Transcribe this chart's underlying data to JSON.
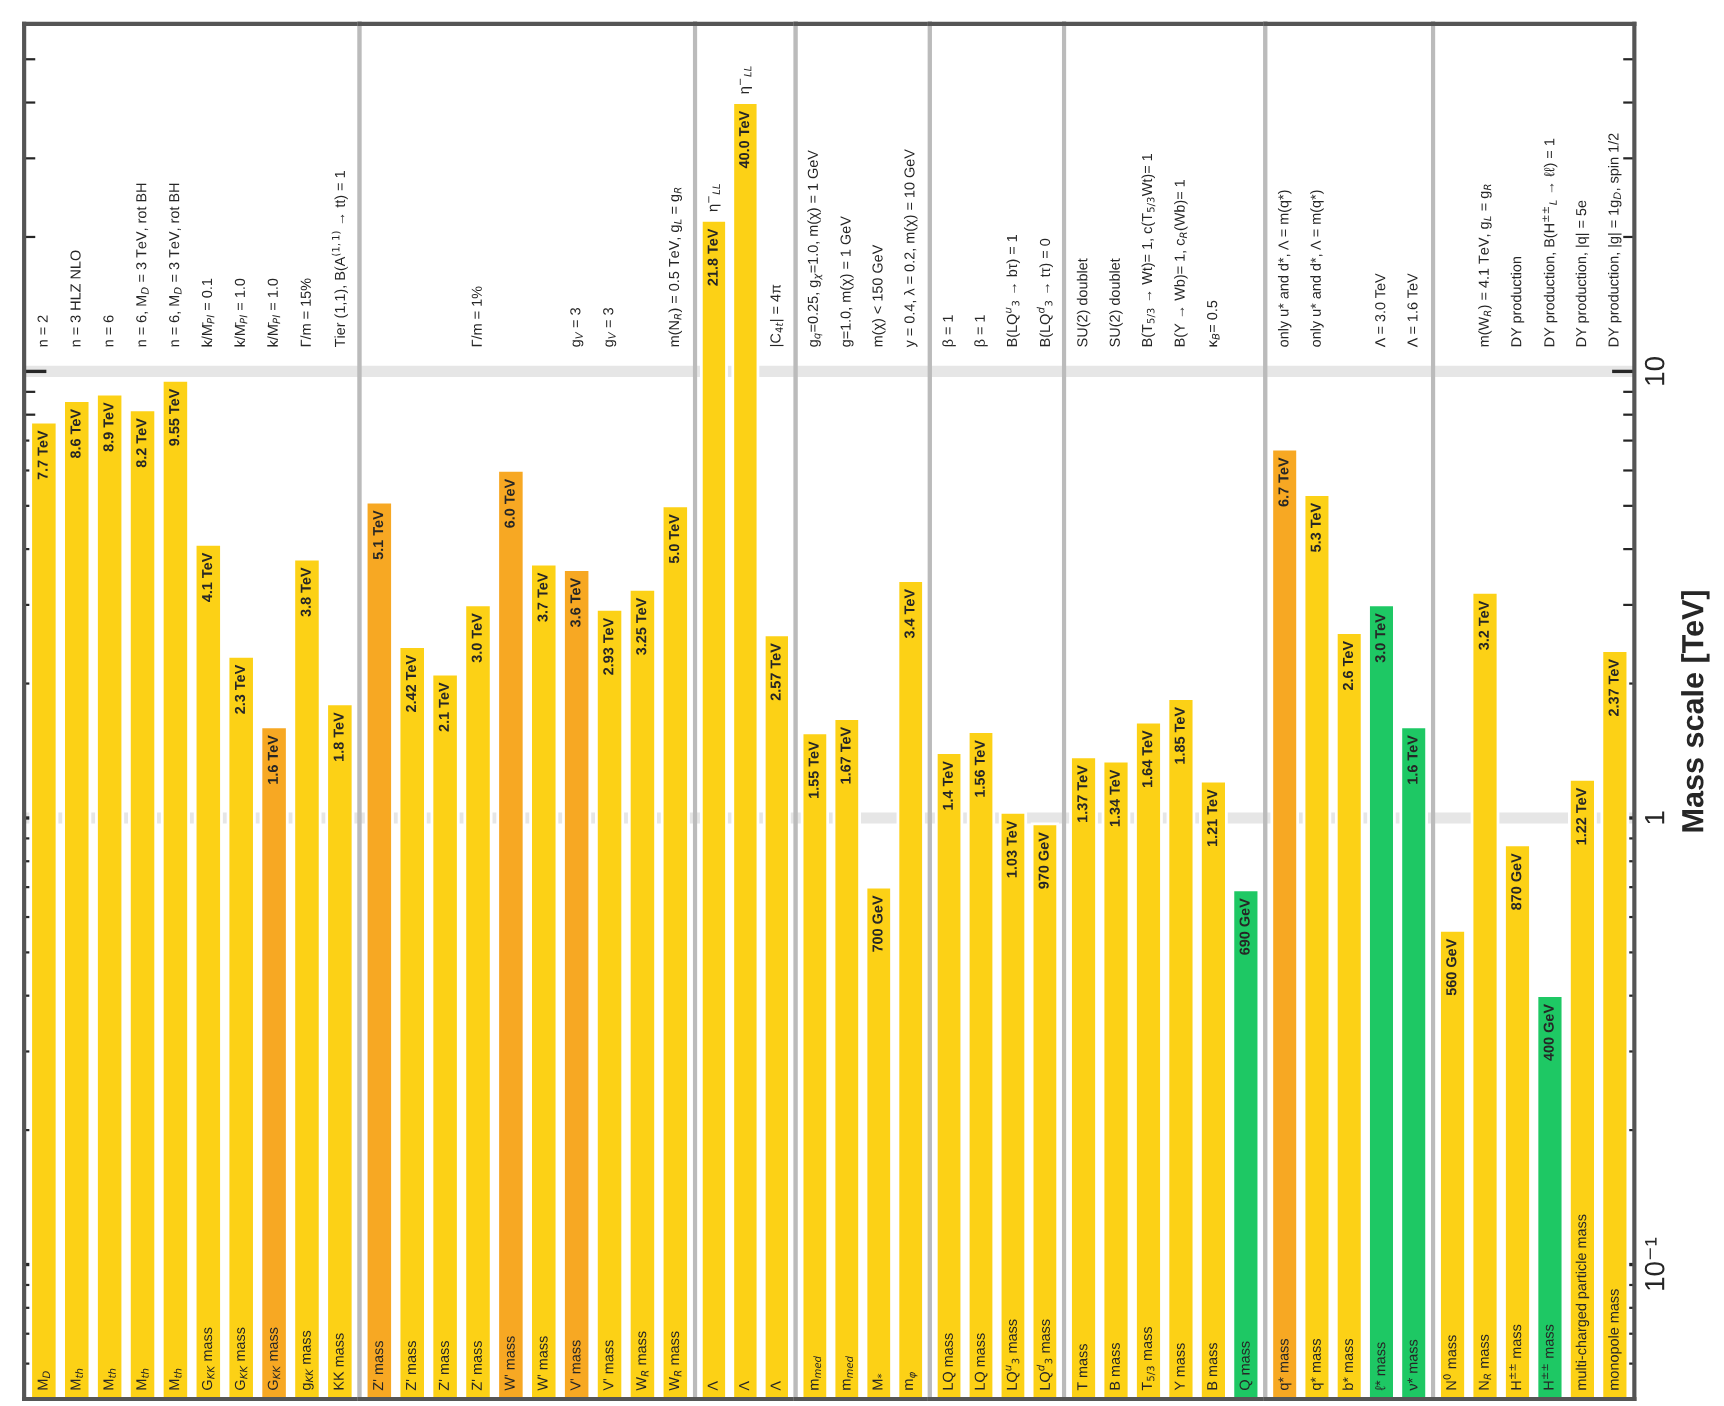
{
  "chart_data": [
    {
      "type": "bar",
      "log": true,
      "ylim": [
        0.05,
        60
      ],
      "yticks": [
        {
          "value": 0.1,
          "label": null
        },
        {
          "value": 1,
          "label": null
        },
        {
          "value": 10,
          "label": null
        }
      ],
      "tick_labels": "x",
      "ref_lines": [
        {
          "axis": "y",
          "value": 1,
          "color": "#e6e6e6"
        },
        {
          "axis": "y",
          "value": 10,
          "color": "#e6e6e6"
        }
      ],
      "categories": [
        "M$_{D}$",
        "M$_{th}$",
        "M$_{th}$",
        "M$_{th}$",
        "M$_{th}$",
        "G$_{KK}$ mass",
        "G$_{KK}$ mass",
        "G$_{KK}$ mass",
        "g$_{KK}$ mass",
        "KK mass"
      ],
      "values": [
        7.7,
        8.6,
        8.9,
        8.2,
        9.55,
        4.1,
        2.3,
        1.6,
        3.8,
        1.8
      ],
      "value_labels": [
        "7.7 TeV",
        "8.6 TeV",
        "8.9 TeV",
        "8.2 TeV",
        "9.55 TeV",
        "4.1 TeV",
        "2.3 TeV",
        "1.6 TeV",
        "3.8 TeV",
        "1.8 TeV"
      ],
      "colors": [
        "#fcd116",
        "#fcd116",
        "#fcd116",
        "#fcd116",
        "#fcd116",
        "#fcd116",
        "#fcd116",
        "#f7a823",
        "#fcd116",
        "#fcd116"
      ],
      "annotations": [
        "n = 2",
        "n = 3 HLZ NLO",
        "n = 6",
        "n = 6, M$_{D}$ = 3 TeV, rot BH",
        "n = 6, M$_{D}$ = 3 TeV, rot BH",
        "k/M̄$_{Pl}$ = 0.1",
        "k/M̄$_{Pl}$ = 1.0",
        "k/M̄$_{Pl}$ = 1.0",
        "Γ/m = 15%",
        "Tier (1,1), B(A$^{(1,1)}$ → tt) = 1"
      ]
    },
    {
      "type": "bar",
      "log": true,
      "ylim": [
        0.05,
        60
      ],
      "tick_labels": "x",
      "ref_lines": [
        {
          "axis": "y",
          "value": 1,
          "color": "#e6e6e6"
        },
        {
          "axis": "y",
          "value": 10,
          "color": "#e6e6e6"
        }
      ],
      "categories": [
        "Z' mass",
        "Z' mass",
        "Z' mass",
        "Z' mass",
        "W' mass",
        "W' mass",
        "V' mass",
        "V' mass",
        "W$_{R}$ mass",
        "W$_{R}$ mass"
      ],
      "values": [
        5.1,
        2.42,
        2.1,
        3.0,
        6.0,
        3.7,
        3.6,
        2.93,
        3.25,
        5.0
      ],
      "value_labels": [
        "5.1 TeV",
        "2.42 TeV",
        "2.1 TeV",
        "3.0 TeV",
        "6.0 TeV",
        "3.7 TeV",
        "3.6 TeV",
        "2.93 TeV",
        "3.25 TeV",
        "5.0 TeV"
      ],
      "colors": [
        "#f7a823",
        "#fcd116",
        "#fcd116",
        "#fcd116",
        "#f7a823",
        "#fcd116",
        "#f7a823",
        "#fcd116",
        "#fcd116",
        "#fcd116"
      ],
      "annotations": [
        "Γ/m = 1%",
        "g$_{V}$ = 3",
        "g$_{V}$ = 3",
        "m(N$_{R}$) = 0.5 TeV, g$_{L}$ = g$_{R}$"
      ]
    },
    {
      "type": "bar",
      "log": true,
      "ylim": [
        0.05,
        60
      ],
      "tick_labels": "x",
      "ref_lines": [
        {
          "axis": "y",
          "value": 1,
          "color": "#e6e6e6"
        },
        {
          "axis": "y",
          "value": 10,
          "color": "#e6e6e6"
        }
      ],
      "categories": [
        "Λ",
        "Λ",
        "Λ"
      ],
      "values": [
        21.8,
        40.0,
        2.57
      ],
      "value_labels": [
        "21.8 TeV",
        "40.0 TeV",
        "2.57 TeV"
      ],
      "colors": [
        "#fcd116",
        "#fcd116",
        "#fcd116"
      ],
      "annotations": [
        {
          "text": "η$^{−}$$_{LL}$",
          "x": "Λ",
          "y": 21.8
        },
        "η$^{−}$$_{LL}$",
        "|C$_{4t}$| = 4π"
      ]
    },
    {
      "type": "bar",
      "log": true,
      "ylim": [
        0.05,
        60
      ],
      "tick_labels": "x",
      "ref_lines": [
        {
          "axis": "y",
          "value": 1,
          "color": "#e6e6e6"
        },
        {
          "axis": "y",
          "value": 10,
          "color": "#e6e6e6"
        }
      ],
      "categories": [
        "m$_{med}$",
        "m$_{med}$",
        "M$_{*}$",
        "m$_{φ}$"
      ],
      "values": [
        1.55,
        1.67,
        0.7,
        3.4
      ],
      "value_labels": [
        "1.55 TeV",
        "1.67 TeV",
        null,
        "3.4 TeV"
      ],
      "colors": [
        "#fcd116",
        "#fcd116",
        "#fcd116",
        "#fcd116"
      ],
      "annotations": [
        "g$_{q}$=0.25, g$_{χ}$=1.0, m(χ) = 1 GeV",
        "g=1.0, m(χ) = 1 GeV",
        "m(χ) < 150 GeV",
        "y = 0.4, λ = 0.2, m(χ) = 10 GeV",
        {
          "text": "700 GeV",
          "x": "M$_{*}$",
          "y": 0.7
        }
      ]
    },
    {
      "type": "bar",
      "log": true,
      "ylim": [
        0.05,
        60
      ],
      "tick_labels": "x",
      "ref_lines": [
        {
          "axis": "y",
          "value": 1,
          "color": "#e6e6e6"
        },
        {
          "axis": "y",
          "value": 10,
          "color": "#e6e6e6"
        }
      ],
      "categories": [
        "LQ mass",
        "LQ mass",
        "LQ$^{u}$$_{3}$ mass",
        "LQ$^{d}$$_{3}$ mass"
      ],
      "values": [
        1.4,
        1.56,
        1.03,
        0.97
      ],
      "value_labels": [
        "1.4 TeV",
        "1.56 TeV",
        "1.03 TeV",
        null
      ],
      "colors": [
        "#fcd116",
        "#fcd116",
        "#fcd116",
        "#fcd116"
      ],
      "annotations": [
        "β = 1",
        "β = 1",
        "B(LQ$^{u}$$_{3}$ → bτ) = 1",
        "B(LQ$^{d}$$_{3}$ → tτ) = 0",
        {
          "text": "970 GeV",
          "x": "LQ$^{d}$$_{3}$ mass",
          "y": 0.97
        }
      ]
    },
    {
      "type": "bar",
      "log": true,
      "ylim": [
        0.05,
        60
      ],
      "tick_labels": "x",
      "ref_lines": [
        {
          "axis": "y",
          "value": 1,
          "color": "#e6e6e6"
        },
        {
          "axis": "y",
          "value": 10,
          "color": "#e6e6e6"
        }
      ],
      "categories": [
        "T mass",
        "B mass",
        "T$_{5/3}$ mass",
        "Y mass",
        "B mass",
        "Q mass"
      ],
      "values": [
        1.37,
        1.34,
        1.64,
        1.85,
        1.21,
        0.69
      ],
      "value_labels": [
        "1.37 TeV",
        "1.34 TeV",
        "1.64 TeV",
        "1.85 TeV",
        "1.21 TeV",
        null
      ],
      "colors": [
        "#fcd116",
        "#fcd116",
        "#fcd116",
        "#fcd116",
        "#fcd116",
        "#1ec864"
      ],
      "annotations": [
        "SU(2) doublet",
        "SU(2) doublet",
        "B(T$_{5/3}$ → Wt)= 1, c(T$_{5/3}$Wt)= 1",
        "B(Y → Wb)= 1, c$_{R}$(Wb)= 1",
        "κ$_{B}$= 0.5",
        {
          "text": "690 GeV",
          "x": "Q mass",
          "y": 0.69
        }
      ]
    },
    {
      "type": "bar",
      "log": true,
      "ylim": [
        0.05,
        60
      ],
      "tick_labels": "x",
      "ref_lines": [
        {
          "axis": "y",
          "value": 1,
          "color": "#e6e6e6"
        },
        {
          "axis": "y",
          "value": 10,
          "color": "#e6e6e6"
        }
      ],
      "categories": [
        "q* mass",
        "q* mass",
        "b* mass",
        "ℓ* mass",
        "ν* mass"
      ],
      "values": [
        6.7,
        5.3,
        2.6,
        3.0,
        1.6
      ],
      "value_labels": [
        "6.7 TeV",
        "5.3 TeV",
        "2.6 TeV",
        "3.0 TeV",
        "1.6 TeV"
      ],
      "colors": [
        "#f7a823",
        "#fcd116",
        "#fcd116",
        "#1ec864",
        "#1ec864"
      ],
      "annotations": [
        "only u* and d*, Λ = m(q*)",
        "only u* and d*, Λ = m(q*)",
        "Λ = 3.0 TeV",
        "Λ = 1.6 TeV"
      ]
    },
    {
      "type": "bar",
      "log": true,
      "ylim": [
        0.05,
        60
      ],
      "yticks": [
        {
          "value": 0.1,
          "label": "10⁻¹"
        },
        1,
        10
      ],
      "ylabel": "Mass scale [TeV]",
      "ref_lines": [
        {
          "axis": "y",
          "value": 1,
          "color": "#e6e6e6"
        },
        {
          "axis": "y",
          "value": 10,
          "color": "#e6e6e6"
        }
      ],
      "categories": [
        "N$^{0}$ mass",
        "N$_{R}$ mass",
        "H$^{±±}$ mass",
        "H$^{±±}$ mass",
        "multi-charged particle mass",
        "monopole mass"
      ],
      "values": [
        0.56,
        3.2,
        0.87,
        0.4,
        1.22,
        2.37
      ],
      "value_labels": [
        null,
        "3.2 TeV",
        null,
        null,
        "1.22 TeV",
        "2.37 TeV"
      ],
      "colors": [
        "#fcd116",
        "#fcd116",
        "#fcd116",
        "#1ec864",
        "#fcd116",
        "#fcd116"
      ],
      "annotations": [
        "m(W$_{R}$) = 4.1 TeV, g$_{L}$ = g$_{R}$",
        "DY production",
        "DY production, B(H$^{±±}$$_{L}$ → ℓℓ) = 1",
        "DY production, |q| = 5e",
        "DY production, |g| = 1g$_{D}$, spin 1/2",
        {
          "text": "560 GeV",
          "x": "N$^{0}$ mass",
          "y": 0.56
        },
        {
          "text": "870 GeV",
          "x": "H$^{±±}$ mass",
          "y": 0.87
        },
        "400 GeV"
      ]
    }
  ]
}
